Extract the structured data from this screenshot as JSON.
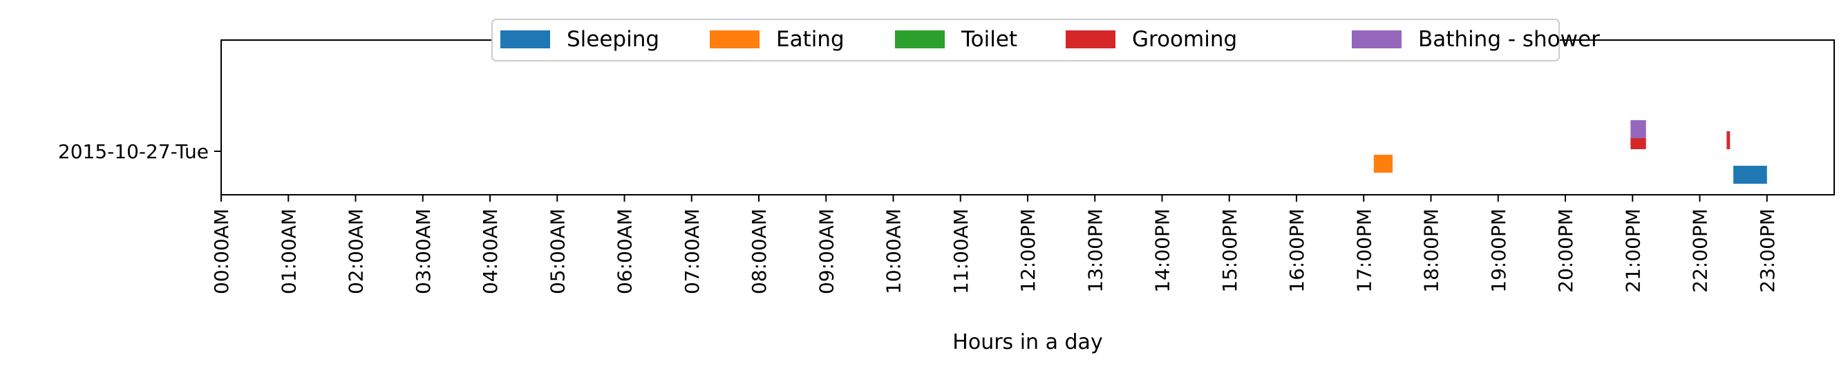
{
  "chart_data": {
    "type": "timeline",
    "title": "",
    "xlabel": "Hours in a day",
    "ylabel": "",
    "xlim": [
      0,
      24
    ],
    "grid": false,
    "legend_position": "top-center",
    "y_categories": [
      "2015-10-27-Tue"
    ],
    "x_ticks": [
      {
        "value": 0,
        "label": "00:00AM"
      },
      {
        "value": 1,
        "label": "01:00AM"
      },
      {
        "value": 2,
        "label": "02:00AM"
      },
      {
        "value": 3,
        "label": "03:00AM"
      },
      {
        "value": 4,
        "label": "04:00AM"
      },
      {
        "value": 5,
        "label": "05:00AM"
      },
      {
        "value": 6,
        "label": "06:00AM"
      },
      {
        "value": 7,
        "label": "07:00AM"
      },
      {
        "value": 8,
        "label": "08:00AM"
      },
      {
        "value": 9,
        "label": "09:00AM"
      },
      {
        "value": 10,
        "label": "10:00AM"
      },
      {
        "value": 11,
        "label": "11:00AM"
      },
      {
        "value": 12,
        "label": "12:00PM"
      },
      {
        "value": 13,
        "label": "13:00PM"
      },
      {
        "value": 14,
        "label": "14:00PM"
      },
      {
        "value": 15,
        "label": "15:00PM"
      },
      {
        "value": 16,
        "label": "16:00PM"
      },
      {
        "value": 17,
        "label": "17:00PM"
      },
      {
        "value": 18,
        "label": "18:00PM"
      },
      {
        "value": 19,
        "label": "19:00PM"
      },
      {
        "value": 20,
        "label": "20:00PM"
      },
      {
        "value": 21,
        "label": "21:00PM"
      },
      {
        "value": 22,
        "label": "22:00PM"
      },
      {
        "value": 23,
        "label": "23:00PM"
      }
    ],
    "series": [
      {
        "name": "Sleeping",
        "color": "#1f77b4",
        "intervals": [
          {
            "day": "2015-10-27-Tue",
            "start": 22.5,
            "end": 23.0
          }
        ]
      },
      {
        "name": "Eating",
        "color": "#ff7f0e",
        "intervals": [
          {
            "day": "2015-10-27-Tue",
            "start": 17.15,
            "end": 17.43
          }
        ]
      },
      {
        "name": "Toilet",
        "color": "#2ca02c",
        "intervals": []
      },
      {
        "name": "Grooming",
        "color": "#d62728",
        "intervals": [
          {
            "day": "2015-10-27-Tue",
            "start": 20.97,
            "end": 21.2
          },
          {
            "day": "2015-10-27-Tue",
            "start": 22.4,
            "end": 22.45
          }
        ]
      },
      {
        "name": "Bathing - shower",
        "color": "#9467bd",
        "intervals": [
          {
            "day": "2015-10-27-Tue",
            "start": 20.97,
            "end": 21.2
          }
        ]
      }
    ]
  }
}
